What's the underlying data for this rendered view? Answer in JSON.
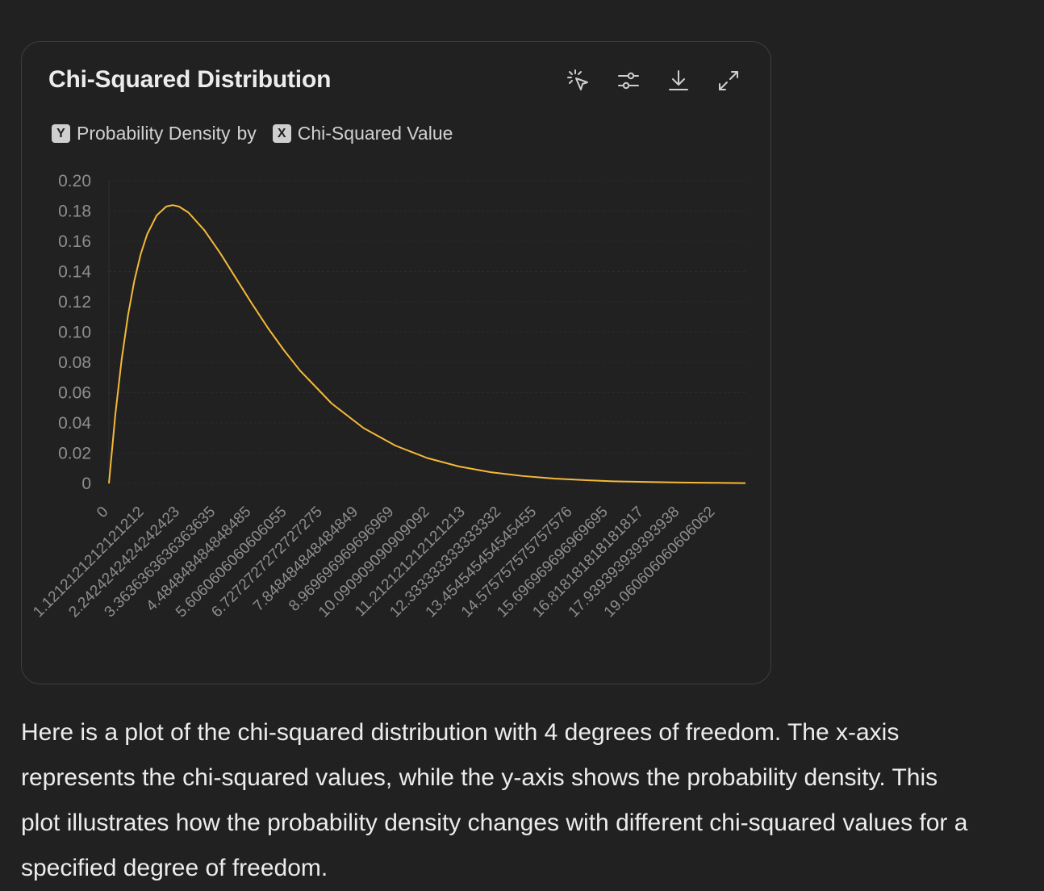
{
  "chart_card": {
    "title": "Chi-Squared Distribution",
    "subtitle": {
      "y_key": "Y",
      "y_label": "Probability Density",
      "connector": "by",
      "x_key": "X",
      "x_label": "Chi-Squared Value"
    },
    "toolbar": {
      "icons": [
        "select-cursor-icon",
        "sliders-icon",
        "download-icon",
        "expand-icon"
      ]
    }
  },
  "chart_data": {
    "type": "line",
    "title": "Chi-Squared Distribution",
    "xlabel": "Chi-Squared Value",
    "ylabel": "Probability Density",
    "degrees_of_freedom": 4,
    "ylim": [
      0,
      0.2
    ],
    "xlim": [
      0,
      20
    ],
    "y_ticks": [
      "0",
      "0.02",
      "0.04",
      "0.06",
      "0.08",
      "0.10",
      "0.12",
      "0.14",
      "0.16",
      "0.18",
      "0.20"
    ],
    "x_tick_labels": [
      "0",
      "1.1212121212121212",
      "2.2424242424242423",
      "3.3636363636363635",
      "4.484848484848485",
      "5.6060606060606055",
      "6.7272727272727275",
      "7.848484848484849",
      "8.969696969696969",
      "10.090909090909092",
      "11.212121212121213",
      "12.333333333333332",
      "13.454545454545455",
      "14.575757575757576",
      "15.696969696969695",
      "16.818181818181817",
      "17.939393939393938",
      "19.060606060606062"
    ],
    "series": [
      {
        "color": "#f5b93a",
        "x": [
          0,
          0.2,
          0.4,
          0.6,
          0.8,
          1.0,
          1.2,
          1.5,
          1.8,
          2.0,
          2.2,
          2.5,
          3.0,
          3.5,
          4.0,
          4.5,
          5.0,
          5.5,
          6.0,
          7.0,
          8.0,
          9.0,
          10.0,
          11.0,
          12.0,
          13.0,
          14.0,
          15.0,
          16.0,
          17.0,
          18.0,
          19.0,
          20.0
        ],
        "y": [
          0,
          0.0452,
          0.0819,
          0.1111,
          0.1341,
          0.1516,
          0.1646,
          0.1771,
          0.183,
          0.1839,
          0.183,
          0.179,
          0.1673,
          0.1521,
          0.1353,
          0.1186,
          0.1026,
          0.088,
          0.0747,
          0.0528,
          0.0366,
          0.025,
          0.0168,
          0.0112,
          0.0074,
          0.0049,
          0.0032,
          0.0021,
          0.0013,
          0.0009,
          0.0006,
          0.0004,
          0.0002
        ]
      }
    ]
  },
  "description": "Here is a plot of the chi-squared distribution with 4 degrees of freedom. The x-axis represents the chi-squared values, while the y-axis shows the probability density. This plot illustrates how the probability density changes with different chi-squared values for a specified degree of freedom."
}
